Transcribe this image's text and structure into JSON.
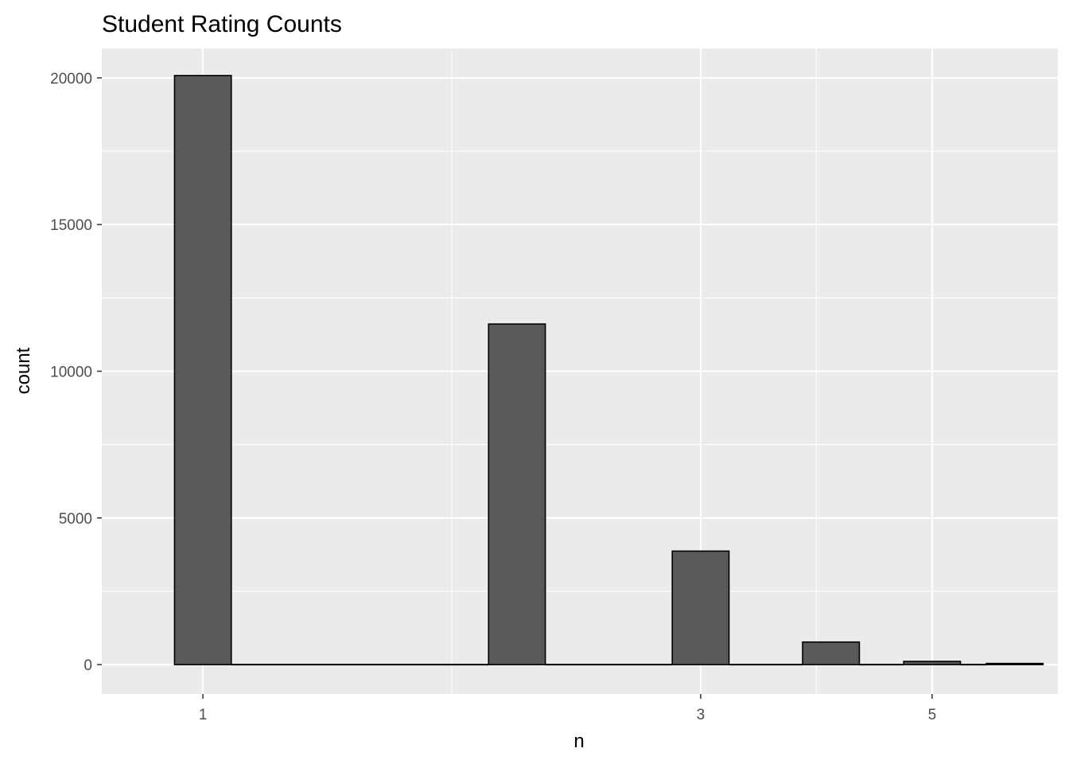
{
  "chart_data": {
    "type": "histogram",
    "title": "Student Rating Counts",
    "xlabel": "n",
    "ylabel": "count",
    "x_scale": "log10",
    "x_ticks": [
      1,
      3,
      5
    ],
    "y_ticks": [
      0,
      5000,
      10000,
      15000,
      20000
    ],
    "ylim": [
      -1000,
      21000
    ],
    "xlim": [
      0.8,
      6.6
    ],
    "grid": true,
    "legend": "none",
    "bar_fill": "#595959",
    "bar_outline": "#000000",
    "panel_background": "#ebebeb",
    "gridline_color": "#ffffff",
    "bars": [
      {
        "x": 1,
        "count": 20080
      },
      {
        "x": 2,
        "count": 11610
      },
      {
        "x": 3,
        "count": 3870
      },
      {
        "x": 4,
        "count": 770
      },
      {
        "x": 5,
        "count": 110
      },
      {
        "x": 6,
        "count": 20
      }
    ]
  }
}
